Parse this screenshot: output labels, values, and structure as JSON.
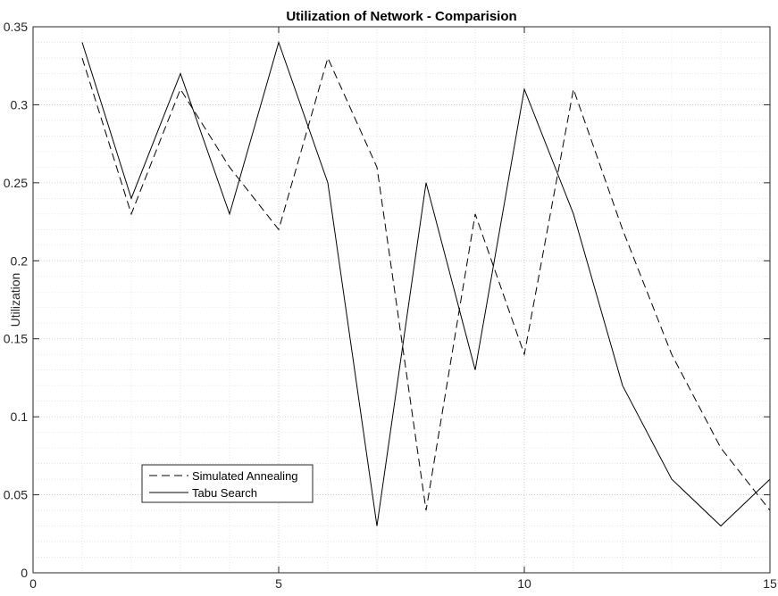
{
  "chart_data": {
    "type": "line",
    "title": "Utilization of Network - Comparision",
    "xlabel": "",
    "ylabel": "Utilization",
    "xlim": [
      0,
      15
    ],
    "ylim": [
      0,
      0.35
    ],
    "xticks": [
      0,
      5,
      10,
      15
    ],
    "xtick_labels": [
      "0",
      "5",
      "10",
      "15"
    ],
    "yticks": [
      0,
      0.05,
      0.1,
      0.15,
      0.2,
      0.25,
      0.3,
      0.35
    ],
    "ytick_labels": [
      "0",
      "0.05",
      "0.1",
      "0.15",
      "0.2",
      "0.25",
      "0.3",
      "0.35"
    ],
    "grid": true,
    "minor_grid": true,
    "legend_position": "lower-left",
    "x": [
      1,
      2,
      3,
      4,
      5,
      6,
      7,
      8,
      9,
      10,
      11,
      12,
      13,
      14,
      15
    ],
    "series": [
      {
        "name": "Simulated Annealing",
        "style": "dashed",
        "color": "#000000",
        "values": [
          0.33,
          0.23,
          0.31,
          0.26,
          0.22,
          0.33,
          0.26,
          0.04,
          0.23,
          0.14,
          0.31,
          0.22,
          0.14,
          0.08,
          0.04
        ]
      },
      {
        "name": "Tabu Search",
        "style": "solid",
        "color": "#000000",
        "values": [
          0.34,
          0.24,
          0.32,
          0.23,
          0.34,
          0.25,
          0.03,
          0.25,
          0.13,
          0.31,
          0.23,
          0.12,
          0.06,
          0.03,
          0.06
        ]
      }
    ]
  }
}
